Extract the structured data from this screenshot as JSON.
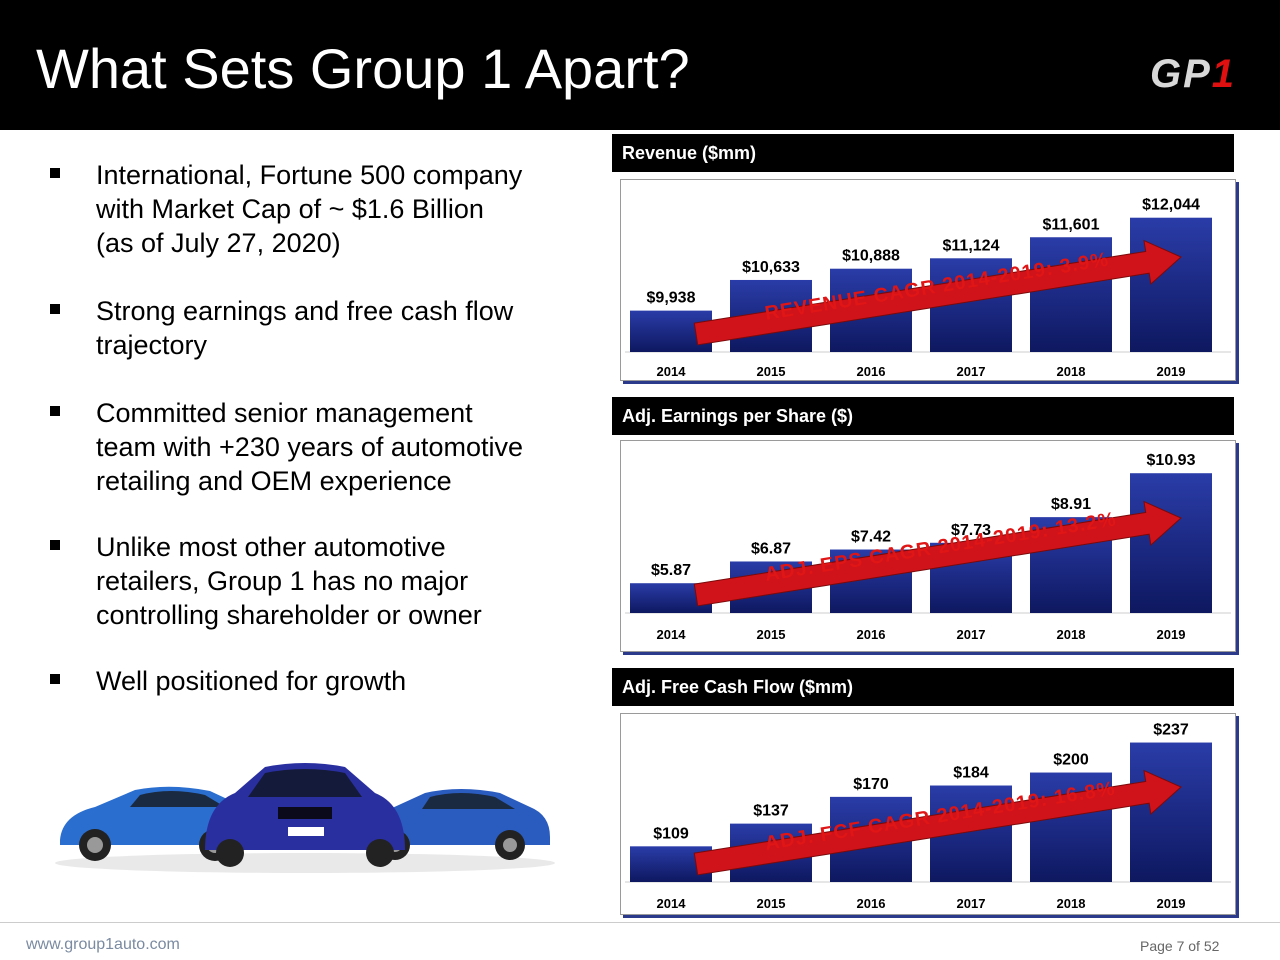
{
  "header": {
    "title": "What Sets Group 1 Apart?",
    "logo_text": "GP",
    "logo_accent": "1"
  },
  "bullets": [
    [
      "International, Fortune 500 company",
      "with Market Cap of ~ $1.6 Billion",
      "(as of July 27, 2020)"
    ],
    [
      "Strong earnings and free cash flow",
      "trajectory"
    ],
    [
      "Committed senior management",
      "team with +230 years of automotive",
      "retailing and OEM experience"
    ],
    [
      "Unlike most other automotive",
      "retailers, Group 1 has no major",
      "controlling shareholder or owner"
    ],
    [
      "Well positioned for growth"
    ]
  ],
  "footer": {
    "site": "www.group1auto.com",
    "page": "Page 7 of 52"
  },
  "colors": {
    "bar": "#1f2f8f",
    "bar_dark": "#0e1860",
    "arrow": "#d0121b",
    "header": "#000000"
  },
  "chart_data": [
    {
      "type": "bar",
      "title": "Revenue ($mm)",
      "categories": [
        "2014",
        "2015",
        "2016",
        "2017",
        "2018",
        "2019"
      ],
      "values": [
        9938,
        10633,
        10888,
        11124,
        11601,
        12044
      ],
      "labels": [
        "$9,938",
        "$10,633",
        "$10,888",
        "$11,124",
        "$11,601",
        "$12,044"
      ],
      "annotation": "REVENUE CAGR 2014-2019: 3.9%",
      "ylim": [
        9000,
        12400
      ]
    },
    {
      "type": "bar",
      "title": "Adj. Earnings per Share ($)",
      "categories": [
        "2014",
        "2015",
        "2016",
        "2017",
        "2018",
        "2019"
      ],
      "values": [
        5.87,
        6.87,
        7.42,
        7.73,
        8.91,
        10.93
      ],
      "labels": [
        "$5.87",
        "$6.87",
        "$7.42",
        "$7.73",
        "$8.91",
        "$10.93"
      ],
      "annotation": "ADJ. EPS CAGR 2014-2019: 13.2%",
      "ylim": [
        4.5,
        11.4
      ]
    },
    {
      "type": "bar",
      "title": "Adj. Free Cash Flow  ($mm)",
      "categories": [
        "2014",
        "2015",
        "2016",
        "2017",
        "2018",
        "2019"
      ],
      "values": [
        109,
        137,
        170,
        184,
        200,
        237
      ],
      "labels": [
        "$109",
        "$137",
        "$170",
        "$184",
        "$200",
        "$237"
      ],
      "annotation": "ADJ. FCF CAGR 2014-2019: 16.8%",
      "ylim": [
        65,
        250
      ]
    }
  ]
}
